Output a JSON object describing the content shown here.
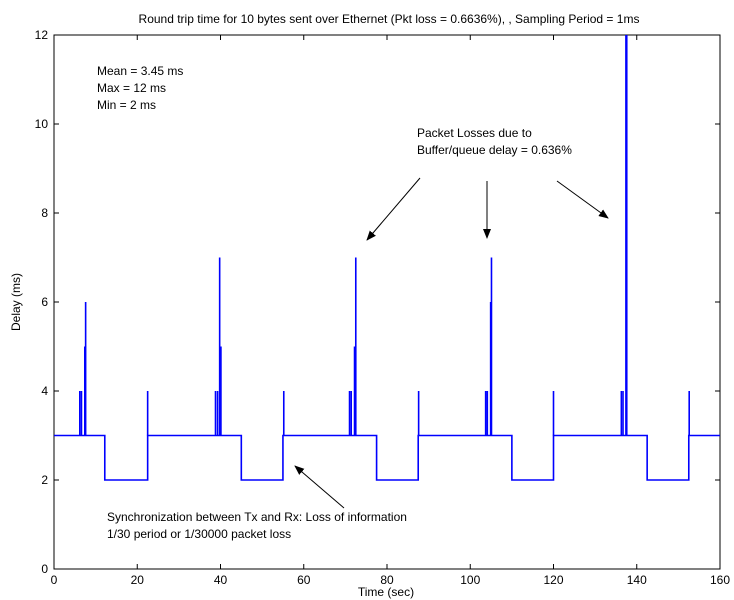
{
  "chart_data": {
    "type": "line",
    "title": "Round trip time for 10 bytes sent over Ethernet (Pkt loss = 0.6636%), , Sampling Period = 1ms",
    "xlabel": "Time (sec)",
    "ylabel": "Delay (ms)",
    "xlim": [
      0,
      160
    ],
    "ylim": [
      0,
      12
    ],
    "xticks": [
      0,
      20,
      40,
      60,
      80,
      100,
      120,
      140,
      160
    ],
    "yticks": [
      0,
      2,
      4,
      6,
      8,
      10,
      12
    ],
    "grid": false,
    "line_color": "#0000ff",
    "stats": [
      "Mean = 3.45 ms",
      "Max = 12 ms",
      "Min = 2 ms"
    ],
    "annotations": [
      {
        "lines": [
          "Packet Losses due to",
          "Buffer/queue delay = 0.636%"
        ]
      },
      {
        "lines": [
          "Synchronization between Tx and Rx: Loss of information",
          "1/30 period or 1/30000 packet loss"
        ]
      }
    ],
    "baseline_segments": [
      {
        "x": [
          0,
          12.2
        ],
        "y": 3
      },
      {
        "x": [
          12.2,
          22.5
        ],
        "y": 2
      },
      {
        "x": [
          22.5,
          45.0
        ],
        "y": 3
      },
      {
        "x": [
          45.0,
          55.0
        ],
        "y": 2
      },
      {
        "x": [
          55.0,
          77.5
        ],
        "y": 3
      },
      {
        "x": [
          77.5,
          87.5
        ],
        "y": 2
      },
      {
        "x": [
          87.5,
          110.0
        ],
        "y": 3
      },
      {
        "x": [
          110.0,
          120.0
        ],
        "y": 2
      },
      {
        "x": [
          120.0,
          142.5
        ],
        "y": 3
      },
      {
        "x": [
          142.5,
          152.5
        ],
        "y": 2
      },
      {
        "x": [
          152.5,
          160
        ],
        "y": 3
      }
    ],
    "spikes": [
      {
        "x": 6.2,
        "y": 4
      },
      {
        "x": 6.6,
        "y": 4
      },
      {
        "x": 7.4,
        "y": 5
      },
      {
        "x": 7.6,
        "y": 6
      },
      {
        "x": 22.5,
        "y": 4
      },
      {
        "x": 38.8,
        "y": 4
      },
      {
        "x": 39.3,
        "y": 4
      },
      {
        "x": 39.8,
        "y": 7
      },
      {
        "x": 40.1,
        "y": 5
      },
      {
        "x": 55.2,
        "y": 4
      },
      {
        "x": 71.0,
        "y": 4
      },
      {
        "x": 71.4,
        "y": 4
      },
      {
        "x": 72.2,
        "y": 5
      },
      {
        "x": 72.5,
        "y": 7
      },
      {
        "x": 87.6,
        "y": 4
      },
      {
        "x": 103.7,
        "y": 4
      },
      {
        "x": 104.1,
        "y": 4
      },
      {
        "x": 104.9,
        "y": 6
      },
      {
        "x": 105.1,
        "y": 7
      },
      {
        "x": 120.0,
        "y": 4
      },
      {
        "x": 136.3,
        "y": 4
      },
      {
        "x": 136.7,
        "y": 4
      },
      {
        "x": 137.4,
        "y": 12
      },
      {
        "x": 137.6,
        "y": 12
      },
      {
        "x": 152.6,
        "y": 4
      }
    ]
  }
}
